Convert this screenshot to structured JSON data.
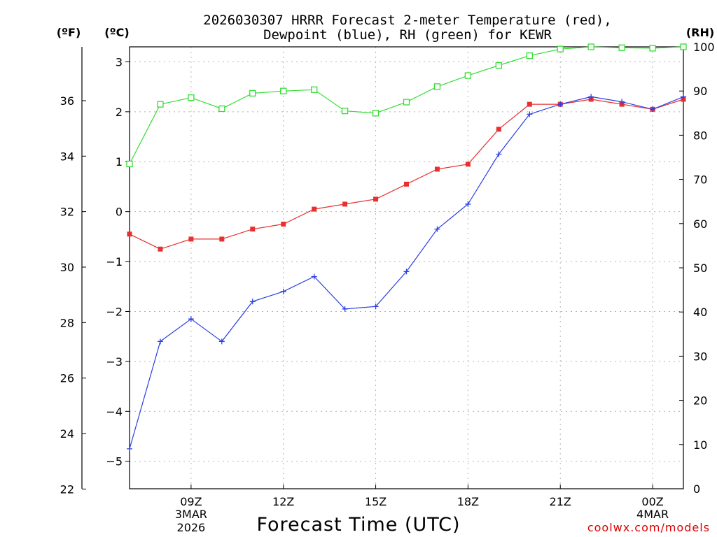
{
  "chart_data": {
    "type": "line",
    "title_line1": "2026030307 HRRR Forecast 2-meter Temperature (red),",
    "title_line2": "Dewpoint (blue), RH (green) for KEWR",
    "unit_f": "(ºF)",
    "unit_c": "(ºC)",
    "unit_rh": "(RH)",
    "xlabel": "Forecast Time (UTC)",
    "credit": "coolwx.com/models",
    "x_hours": [
      7,
      8,
      9,
      10,
      11,
      12,
      13,
      14,
      15,
      16,
      17,
      18,
      19,
      20,
      21,
      22,
      23,
      24,
      25
    ],
    "xlim": [
      7,
      25
    ],
    "x_ticks": [
      {
        "hour": 9,
        "label": "09Z",
        "date": "3MAR",
        "year": "2026"
      },
      {
        "hour": 12,
        "label": "12Z",
        "date": "",
        "year": ""
      },
      {
        "hour": 15,
        "label": "15Z",
        "date": "",
        "year": ""
      },
      {
        "hour": 18,
        "label": "18Z",
        "date": "",
        "year": ""
      },
      {
        "hour": 21,
        "label": "21Z",
        "date": "",
        "year": ""
      },
      {
        "hour": 24,
        "label": "00Z",
        "date": "4MAR",
        "year": ""
      }
    ],
    "y_celsius": {
      "lim": [
        -5.55,
        3.3
      ],
      "ticks": [
        "3",
        "2",
        "1",
        "0",
        "−1",
        "−2",
        "−3",
        "−4",
        "−5"
      ],
      "tick_values": [
        3,
        2,
        1,
        0,
        -1,
        -2,
        -3,
        -4,
        -5
      ]
    },
    "y_fahrenheit": {
      "ticks": [
        "36",
        "34",
        "32",
        "30",
        "28",
        "26",
        "24",
        "22"
      ],
      "tick_values": [
        36,
        34,
        32,
        30,
        28,
        26,
        24,
        22
      ]
    },
    "y_rh": {
      "lim": [
        0,
        100
      ],
      "ticks": [
        "100",
        "90",
        "80",
        "70",
        "60",
        "50",
        "40",
        "30",
        "20",
        "10",
        "0"
      ],
      "tick_values": [
        100,
        90,
        80,
        70,
        60,
        50,
        40,
        30,
        20,
        10,
        0
      ]
    },
    "series": [
      {
        "name": "2-meter Temperature",
        "axis": "celsius",
        "color": "#e83030",
        "marker": "filled-square",
        "values": [
          -0.45,
          -0.75,
          -0.55,
          -0.55,
          -0.35,
          -0.25,
          0.05,
          0.15,
          0.25,
          0.55,
          0.85,
          0.95,
          1.65,
          2.15,
          2.15,
          2.25,
          2.15,
          2.05,
          2.25
        ]
      },
      {
        "name": "Dewpoint",
        "axis": "celsius",
        "color": "#2a3ee6",
        "marker": "plus",
        "values": [
          -4.75,
          -2.6,
          -2.15,
          -2.6,
          -1.8,
          -1.6,
          -1.3,
          -1.95,
          -1.9,
          -1.2,
          -0.35,
          0.15,
          1.15,
          1.95,
          2.15,
          2.3,
          2.2,
          2.05,
          2.3
        ]
      },
      {
        "name": "RH",
        "axis": "rh",
        "color": "#33dd33",
        "marker": "open-square",
        "values": [
          73.5,
          87,
          88.5,
          86,
          89.5,
          90,
          90.3,
          85.5,
          85,
          87.5,
          91,
          93.5,
          95.8,
          98,
          99.5,
          100,
          99.8,
          99.7,
          100
        ]
      }
    ]
  }
}
